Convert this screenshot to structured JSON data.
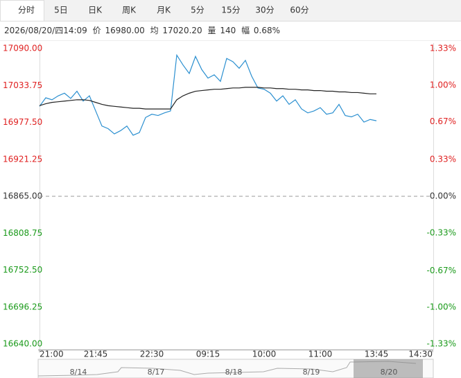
{
  "tabs": [
    "分时",
    "5日",
    "日K",
    "周K",
    "月K",
    "5分",
    "15分",
    "30分",
    "60分"
  ],
  "info": {
    "datetime": "2026/08/20/四14:09",
    "price_label": "价",
    "price": "16980.00",
    "avg_label": "均",
    "avg": "17020.20",
    "volume_label": "量",
    "volume": "140",
    "range_label": "幅",
    "range": "0.68%"
  },
  "chart_data": {
    "type": "line",
    "categories": [
      "21:00",
      null,
      null,
      null,
      null,
      null,
      null,
      null,
      null,
      "21:45",
      null,
      null,
      null,
      null,
      null,
      null,
      null,
      null,
      "22:30",
      null,
      null,
      null,
      null,
      null,
      null,
      null,
      null,
      "09:15",
      null,
      null,
      null,
      null,
      null,
      null,
      null,
      null,
      "10:00",
      null,
      null,
      null,
      null,
      null,
      null,
      null,
      null,
      "11:00",
      null,
      null,
      null,
      null,
      null,
      null,
      null,
      null,
      "13:45",
      null,
      null,
      null,
      null,
      null,
      null,
      null,
      null,
      "14:30"
    ],
    "series": [
      {
        "color": "#2a8fd0",
        "values": [
          17002,
          17015,
          17012,
          17018,
          17022,
          17014,
          17025,
          17010,
          17018,
          16995,
          16972,
          16968,
          16960,
          16965,
          16972,
          16958,
          16962,
          16985,
          16990,
          16988,
          16992,
          16995,
          17080,
          17065,
          17052,
          17078,
          17058,
          17045,
          17050,
          17040,
          17075,
          17070,
          17060,
          17072,
          17048,
          17030,
          17028,
          17022,
          17010,
          17018,
          17005,
          17012,
          16998,
          16992,
          16995,
          17000,
          16990,
          16992,
          17005,
          16988,
          16986,
          16990,
          16978,
          16982,
          16980,
          null,
          null,
          null,
          null,
          null,
          null,
          null,
          null,
          null
        ]
      },
      {
        "color": "#222222",
        "values": [
          17003,
          17006,
          17008,
          17009,
          17010,
          17011,
          17012,
          17012,
          17011,
          17008,
          17005,
          17003,
          17002,
          17001,
          17000,
          16999,
          16999,
          16998,
          16998,
          16998,
          16998,
          16998,
          17012,
          17018,
          17022,
          17025,
          17026,
          17027,
          17028,
          17028,
          17029,
          17030,
          17030,
          17031,
          17031,
          17031,
          17030,
          17030,
          17029,
          17029,
          17028,
          17028,
          17027,
          17027,
          17026,
          17026,
          17025,
          17025,
          17024,
          17024,
          17023,
          17023,
          17022,
          17021,
          17021,
          null,
          null,
          null,
          null,
          null,
          null,
          null,
          null,
          null
        ]
      }
    ],
    "ylim": [
      16640,
      17090
    ],
    "yticks": [
      {
        "value": 17090,
        "label": "17090.00"
      },
      {
        "value": 17033.75,
        "label": "17033.75"
      },
      {
        "value": 16977.5,
        "label": "16977.50"
      },
      {
        "value": 16921.25,
        "label": "16921.25"
      },
      {
        "value": 16865,
        "label": "16865.00"
      },
      {
        "value": 16808.75,
        "label": "16808.75"
      },
      {
        "value": 16752.5,
        "label": "16752.50"
      },
      {
        "value": 16696.25,
        "label": "16696.25"
      },
      {
        "value": 16640,
        "label": "16640.00"
      }
    ],
    "y2lim": [
      -1.33,
      1.33
    ],
    "y2ticks": [
      {
        "value": 1.33,
        "label": "1.33%"
      },
      {
        "value": 1.0,
        "label": "1.00%"
      },
      {
        "value": 0.67,
        "label": "0.67%"
      },
      {
        "value": 0.33,
        "label": "0.33%"
      },
      {
        "value": 0.0,
        "label": "0.00%"
      },
      {
        "value": -0.33,
        "label": "-0.33%"
      },
      {
        "value": -0.67,
        "label": "-0.67%"
      },
      {
        "value": -1.0,
        "label": "-1.00%"
      },
      {
        "value": -1.33,
        "label": "-1.33%"
      }
    ],
    "baseline": 16865,
    "up_color": "#e02020",
    "down_color": "#1a9a1a",
    "flat_color": "#333333",
    "navigator": {
      "labels": [
        "8/14",
        "8/17",
        "8/18",
        "8/19",
        "8/20"
      ]
    }
  }
}
